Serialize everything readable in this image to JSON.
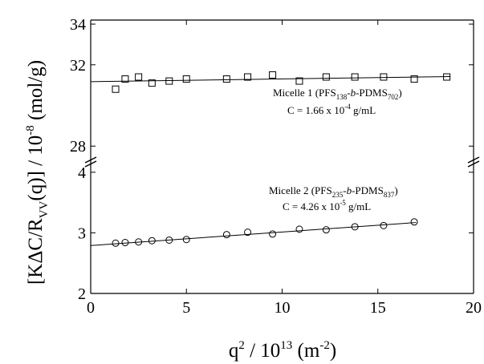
{
  "chart_data": {
    "type": "scatter",
    "xlabel": [
      "q",
      "2",
      " / 10",
      "13",
      " (m",
      "-2",
      ")"
    ],
    "ylabel": [
      "[KΔC/R",
      "VV",
      "(q)] / 10",
      "-8",
      " (mol/g)"
    ],
    "xlim": [
      0,
      20
    ],
    "xticks": [
      0,
      5,
      10,
      15,
      20
    ],
    "panels": [
      {
        "ylim": [
          27.3,
          34.2
        ],
        "yticks": [
          28,
          32,
          34
        ],
        "marker": "square",
        "color": "#000000",
        "x": [
          1.3,
          1.8,
          2.5,
          3.2,
          4.1,
          5,
          7.1,
          8.2,
          9.5,
          10.9,
          12.3,
          13.8,
          15.3,
          16.9,
          18.6
        ],
        "values": [
          30.8,
          31.3,
          31.4,
          31.1,
          31.2,
          31.3,
          31.3,
          31.4,
          31.5,
          31.2,
          31.4,
          31.4,
          31.4,
          31.3,
          31.4
        ],
        "fit": {
          "x": [
            0,
            18.8
          ],
          "values": [
            31.17,
            31.42
          ]
        },
        "annotation": [
          [
            "Micelle 1 (PFS",
            "138",
            "-",
            "b",
            "-PDMS",
            "702",
            ")"
          ],
          [
            "C = 1.66 x 10",
            "-4",
            " g/mL"
          ]
        ]
      },
      {
        "ylim": [
          2,
          4.13
        ],
        "yticks": [
          2,
          3,
          4
        ],
        "marker": "circle",
        "color": "#000000",
        "x": [
          1.3,
          1.8,
          2.5,
          3.2,
          4.1,
          5,
          7.1,
          8.2,
          9.5,
          10.9,
          12.3,
          13.8,
          15.3,
          16.9
        ],
        "values": [
          2.83,
          2.84,
          2.85,
          2.87,
          2.88,
          2.89,
          2.97,
          3.01,
          2.98,
          3.06,
          3.05,
          3.1,
          3.12,
          3.18
        ],
        "fit": {
          "x": [
            0,
            17
          ],
          "values": [
            2.79,
            3.17
          ]
        },
        "annotation": [
          [
            "Micelle 2 (PFS",
            "235",
            "-",
            "b",
            "-PDMS",
            "837",
            ")"
          ],
          [
            "C = 4.26 x 10",
            "-5",
            " g/mL"
          ]
        ]
      }
    ]
  }
}
